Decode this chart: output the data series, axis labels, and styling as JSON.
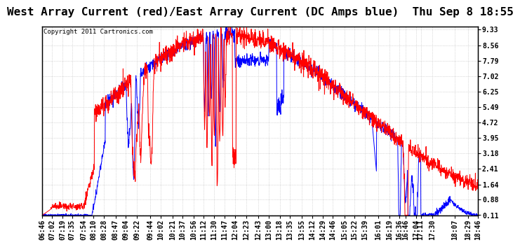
{
  "title": "West Array Current (red)/East Array Current (DC Amps blue)  Thu Sep 8 18:55",
  "copyright": "Copyright 2011 Cartronics.com",
  "ylabel_right": [
    "9.33",
    "8.56",
    "7.79",
    "7.02",
    "6.25",
    "5.49",
    "4.72",
    "3.95",
    "3.18",
    "2.41",
    "1.64",
    "0.88",
    "0.11"
  ],
  "yticks": [
    9.33,
    8.56,
    7.79,
    7.02,
    6.25,
    5.49,
    4.72,
    3.95,
    3.18,
    2.41,
    1.64,
    0.88,
    0.11
  ],
  "ymin": 0.11,
  "ymax": 9.33,
  "xtick_labels": [
    "06:46",
    "07:02",
    "07:19",
    "07:35",
    "07:54",
    "08:10",
    "08:28",
    "08:47",
    "09:04",
    "09:22",
    "09:44",
    "10:02",
    "10:21",
    "10:37",
    "10:56",
    "11:12",
    "11:30",
    "11:47",
    "12:04",
    "12:23",
    "12:43",
    "13:00",
    "13:18",
    "13:35",
    "13:55",
    "14:12",
    "14:29",
    "14:46",
    "15:05",
    "15:22",
    "15:39",
    "16:01",
    "16:19",
    "16:36",
    "16:46",
    "17:04",
    "17:11",
    "17:30",
    "18:07",
    "18:29",
    "18:46"
  ],
  "red_color": "#ff0000",
  "blue_color": "#0000ff",
  "bg_color": "#ffffff",
  "grid_color": "#bbbbbb",
  "title_fontsize": 11.5,
  "copyright_fontsize": 6.5,
  "tick_fontsize": 7
}
